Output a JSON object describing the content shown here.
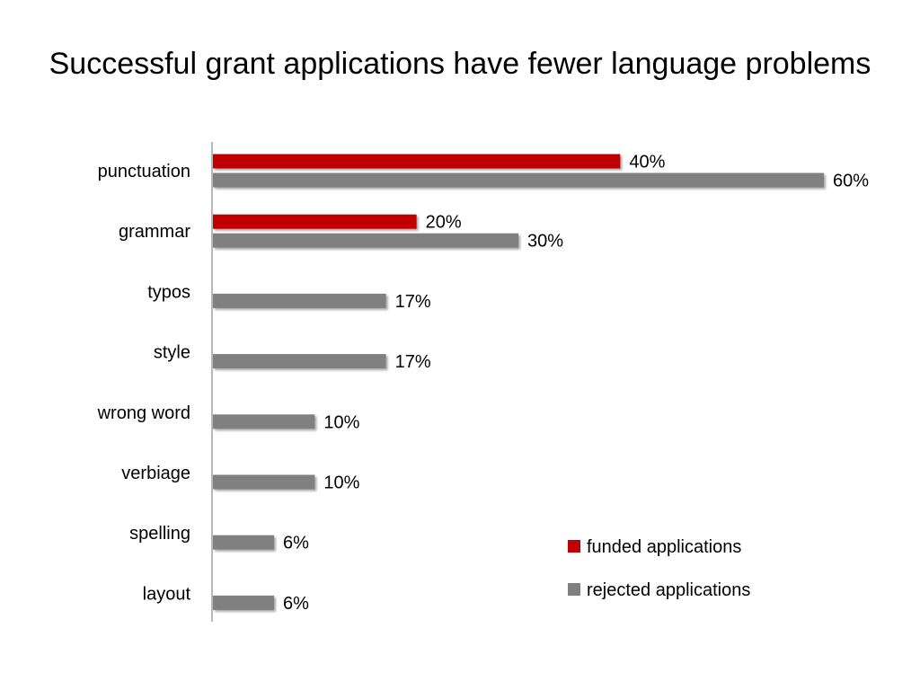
{
  "chart_data": {
    "type": "bar",
    "orientation": "horizontal",
    "title": "Successful grant applications have fewer language problems",
    "xlabel": "",
    "ylabel": "",
    "categories": [
      "punctuation",
      "grammar",
      "typos",
      "style",
      "wrong word",
      "verbiage",
      "spelling",
      "layout"
    ],
    "series": [
      {
        "name": "funded applications",
        "color": "#c00000",
        "values": [
          40,
          20,
          null,
          null,
          null,
          null,
          null,
          null
        ],
        "labels": [
          "40%",
          "20%",
          "",
          "",
          "",
          "",
          "",
          ""
        ]
      },
      {
        "name": "rejected applications",
        "color": "#808080",
        "values": [
          60,
          30,
          17,
          17,
          10,
          10,
          6,
          6
        ],
        "labels": [
          "60%",
          "30%",
          "17%",
          "17%",
          "10%",
          "10%",
          "6%",
          "6%"
        ]
      }
    ],
    "xlim": [
      0,
      60
    ],
    "grid": false,
    "legend_position": "bottom-right"
  }
}
